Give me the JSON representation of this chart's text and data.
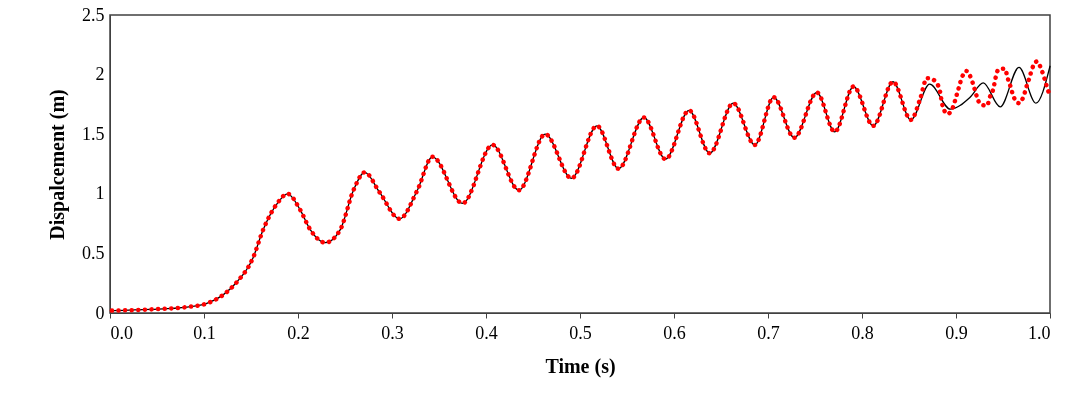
{
  "chart_data": {
    "type": "line",
    "xlabel": "Time (s)",
    "ylabel": "Dispalcement (m)",
    "xlim": [
      0,
      1
    ],
    "xticks": [
      {
        "value": 0,
        "label": "0.0"
      },
      0.1,
      0.2,
      0.3,
      0.4,
      0.5,
      0.6,
      0.7,
      0.8,
      0.9,
      {
        "value": 1,
        "label": "1.0"
      }
    ],
    "ylim": [
      0,
      2.5
    ],
    "yticks": [
      0,
      0.5,
      1,
      1.5,
      2,
      2.5
    ],
    "grid": false,
    "series": [
      {
        "color": "#000000",
        "line_style": "solid",
        "x": [
          0.002,
          0.043,
          0.082,
          0.103,
          0.12,
          0.135,
          0.152,
          0.163,
          0.178,
          0.189,
          0.202,
          0.213,
          0.229,
          0.245,
          0.259,
          0.271,
          0.287,
          0.308,
          0.327,
          0.343,
          0.375,
          0.407,
          0.435,
          0.463,
          0.491,
          0.518,
          0.541,
          0.568,
          0.591,
          0.616,
          0.638,
          0.663,
          0.686,
          0.706,
          0.728,
          0.752,
          0.771,
          0.791,
          0.812,
          0.833,
          0.852,
          0.872,
          0.894,
          0.915,
          0.929,
          0.947,
          0.967,
          0.985,
          1.0
        ],
        "values": [
          0.02,
          0.03,
          0.05,
          0.08,
          0.15,
          0.26,
          0.46,
          0.7,
          0.92,
          1.0,
          0.87,
          0.7,
          0.59,
          0.7,
          1.03,
          1.18,
          1.01,
          0.79,
          1.03,
          1.31,
          0.92,
          1.41,
          1.03,
          1.5,
          1.13,
          1.57,
          1.21,
          1.64,
          1.29,
          1.7,
          1.34,
          1.76,
          1.41,
          1.81,
          1.47,
          1.85,
          1.52,
          1.9,
          1.57,
          1.94,
          1.62,
          1.92,
          1.71,
          1.81,
          1.93,
          1.73,
          2.06,
          1.76,
          2.07
        ]
      },
      {
        "color": "#ff0000",
        "line_style": "dotted",
        "x": [
          0.002,
          0.043,
          0.082,
          0.103,
          0.12,
          0.135,
          0.152,
          0.163,
          0.178,
          0.189,
          0.202,
          0.213,
          0.229,
          0.245,
          0.259,
          0.271,
          0.287,
          0.308,
          0.327,
          0.343,
          0.375,
          0.407,
          0.435,
          0.463,
          0.491,
          0.518,
          0.541,
          0.568,
          0.591,
          0.616,
          0.638,
          0.663,
          0.686,
          0.706,
          0.728,
          0.752,
          0.771,
          0.791,
          0.812,
          0.833,
          0.852,
          0.862,
          0.869,
          0.875,
          0.882,
          0.886,
          0.891,
          0.897,
          0.9,
          0.903,
          0.906,
          0.911,
          0.916,
          0.919,
          0.922,
          0.926,
          0.933,
          0.936,
          0.94,
          0.942,
          0.945,
          0.952,
          0.955,
          0.958,
          0.961,
          0.967,
          0.972,
          0.975,
          0.978,
          0.981,
          0.986,
          0.991,
          0.994,
          0.997,
          1.0
        ],
        "values": [
          0.02,
          0.03,
          0.05,
          0.08,
          0.15,
          0.26,
          0.46,
          0.7,
          0.92,
          1.0,
          0.87,
          0.7,
          0.59,
          0.7,
          1.03,
          1.18,
          1.01,
          0.79,
          1.03,
          1.31,
          0.92,
          1.41,
          1.03,
          1.5,
          1.13,
          1.57,
          1.21,
          1.64,
          1.29,
          1.7,
          1.34,
          1.76,
          1.41,
          1.81,
          1.47,
          1.85,
          1.52,
          1.9,
          1.57,
          1.94,
          1.62,
          1.8,
          1.97,
          1.96,
          1.89,
          1.73,
          1.67,
          1.73,
          1.81,
          1.89,
          1.97,
          2.03,
          1.97,
          1.9,
          1.82,
          1.75,
          1.74,
          1.81,
          1.89,
          1.97,
          2.04,
          2.05,
          1.97,
          1.9,
          1.82,
          1.76,
          1.82,
          1.9,
          1.97,
          2.05,
          2.11,
          2.04,
          1.97,
          1.89,
          1.82
        ]
      }
    ]
  }
}
